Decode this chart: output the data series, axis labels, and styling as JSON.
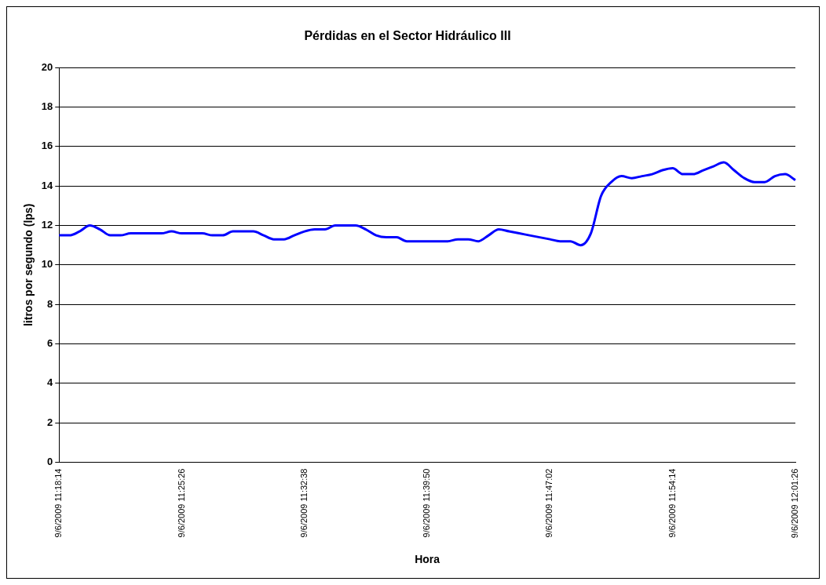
{
  "chart_data": {
    "type": "line",
    "title": "Pérdidas en el Sector Hidráulico III",
    "xlabel": "Hora",
    "ylabel": "litros por segundo (lps)",
    "categories": [
      "9/6/2009 11:18:14",
      null,
      null,
      null,
      null,
      null,
      null,
      null,
      null,
      null,
      null,
      null,
      "9/6/2009 11:25:26",
      null,
      null,
      null,
      null,
      null,
      null,
      null,
      null,
      null,
      null,
      null,
      "9/6/2009 11:32:38",
      null,
      null,
      null,
      null,
      null,
      null,
      null,
      null,
      null,
      null,
      null,
      "9/6/2009 11:39:50",
      null,
      null,
      null,
      null,
      null,
      null,
      null,
      null,
      null,
      null,
      null,
      "9/6/2009 11:47:02",
      null,
      null,
      null,
      null,
      null,
      null,
      null,
      null,
      null,
      null,
      null,
      "9/6/2009 11:54:14",
      null,
      null,
      null,
      null,
      null,
      null,
      null,
      null,
      null,
      null,
      null,
      "9/6/2009 12:01:26"
    ],
    "series": [
      {
        "color": "#0000ff",
        "values": [
          11.5,
          11.5,
          11.7,
          12.0,
          11.8,
          11.5,
          11.5,
          11.6,
          11.6,
          11.6,
          11.6,
          11.7,
          11.6,
          11.6,
          11.6,
          11.5,
          11.5,
          11.7,
          11.7,
          11.7,
          11.5,
          11.3,
          11.3,
          11.5,
          11.7,
          11.8,
          11.8,
          12.0,
          12.0,
          12.0,
          11.8,
          11.5,
          11.4,
          11.4,
          11.2,
          11.2,
          11.2,
          11.2,
          11.2,
          11.3,
          11.3,
          11.2,
          11.5,
          11.8,
          11.7,
          11.6,
          11.5,
          11.4,
          11.3,
          11.2,
          11.2,
          11.0,
          11.6,
          13.5,
          14.2,
          14.5,
          14.4,
          14.5,
          14.6,
          14.8,
          14.9,
          14.6,
          14.6,
          14.8,
          15.0,
          15.2,
          14.8,
          14.4,
          14.2,
          14.2,
          14.5,
          14.6,
          14.3
        ]
      }
    ],
    "ylim": [
      0,
      20
    ],
    "yticks": [
      0,
      2,
      4,
      6,
      8,
      10,
      12,
      14,
      16,
      18,
      20
    ],
    "grid": "y",
    "marker": "none",
    "line_style": "solid"
  }
}
